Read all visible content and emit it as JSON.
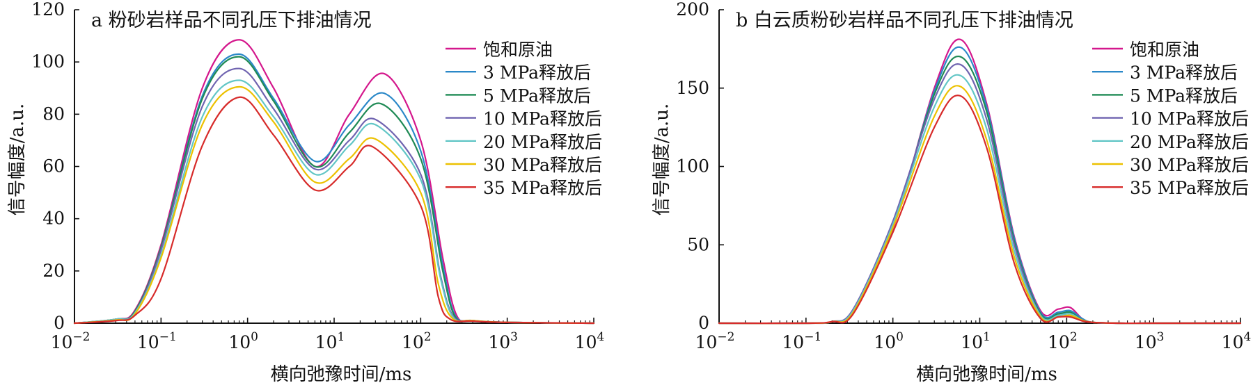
{
  "chart_data": [
    {
      "type": "line",
      "title": "a 粉砂岩样品不同孔压下排油情况",
      "xlabel": "横向弛豫时间/ms",
      "ylabel": "信号幅度/a.u.",
      "xscale": "log",
      "xlim": [
        0.01,
        10000
      ],
      "ylim": [
        0,
        120
      ],
      "xticks": [
        0.01,
        0.1,
        1,
        10,
        100,
        1000,
        10000
      ],
      "xtick_base": "10",
      "xtick_exponents": [
        "−2",
        "−1",
        "0",
        "1",
        "2",
        "3",
        "4"
      ],
      "yticks": [
        "0",
        "20",
        "40",
        "60",
        "80",
        "100",
        "120"
      ],
      "yticks_values": [
        0,
        20,
        40,
        60,
        80,
        100,
        120
      ],
      "legend_position": "right",
      "grid": false,
      "series": [
        {
          "name": "饱和原油",
          "color": "#d4178c",
          "x": [
            0.01,
            0.03,
            0.05,
            0.1,
            0.3,
            0.8,
            2,
            6,
            15,
            38,
            100,
            180,
            260,
            400,
            1000,
            10000
          ],
          "y": [
            0,
            1.5,
            5,
            30,
            90,
            108.5,
            90,
            60,
            80,
            95.5,
            70,
            25,
            3,
            1,
            0.3,
            0
          ]
        },
        {
          "name": "3 MPa释放后",
          "color": "#2a88c8",
          "x": [
            0.01,
            0.03,
            0.05,
            0.1,
            0.3,
            0.8,
            2,
            6,
            15,
            38,
            100,
            180,
            250,
            400,
            1000,
            10000
          ],
          "y": [
            0,
            1.5,
            4.5,
            29,
            87,
            103,
            86,
            62,
            76,
            88,
            66,
            22,
            3,
            1,
            0.3,
            0
          ]
        },
        {
          "name": "5 MPa释放后",
          "color": "#1f8a55",
          "x": [
            0.01,
            0.03,
            0.05,
            0.1,
            0.3,
            0.8,
            2,
            6,
            15,
            35,
            100,
            180,
            250,
            400,
            1000,
            10000
          ],
          "y": [
            0,
            1.5,
            4.5,
            29,
            86,
            102,
            85,
            60,
            73,
            84,
            63,
            20,
            2.5,
            1,
            0.3,
            0
          ]
        },
        {
          "name": "10 MPa释放后",
          "color": "#6f63b0",
          "x": [
            0.01,
            0.03,
            0.05,
            0.1,
            0.3,
            0.8,
            2,
            6,
            15,
            30,
            100,
            170,
            240,
            400,
            1000,
            10000
          ],
          "y": [
            0,
            1.5,
            4,
            28,
            83,
            97.5,
            82,
            59,
            70,
            78,
            57,
            18,
            2.5,
            1,
            0.3,
            0
          ]
        },
        {
          "name": "20 MPa释放后",
          "color": "#62c6c6",
          "x": [
            0.01,
            0.03,
            0.05,
            0.1,
            0.3,
            0.8,
            2,
            6,
            15,
            30,
            100,
            170,
            240,
            400,
            1000,
            10000
          ],
          "y": [
            0,
            1.5,
            4,
            26,
            79,
            93,
            79,
            57,
            68,
            76,
            55,
            17,
            2,
            1,
            0.3,
            0
          ]
        },
        {
          "name": "30 MPa释放后",
          "color": "#ecc100",
          "x": [
            0.01,
            0.03,
            0.05,
            0.1,
            0.3,
            0.8,
            2,
            6,
            15,
            30,
            100,
            160,
            230,
            400,
            1000,
            10000
          ],
          "y": [
            0,
            1.2,
            3.5,
            25,
            76,
            90.5,
            77,
            54,
            63,
            70.5,
            50,
            15,
            2,
            1,
            0.3,
            0
          ]
        },
        {
          "name": "35 MPa释放后",
          "color": "#d72b2a",
          "x": [
            0.01,
            0.03,
            0.05,
            0.1,
            0.3,
            0.8,
            2,
            6,
            15,
            28,
            100,
            160,
            220,
            400,
            1000,
            10000
          ],
          "y": [
            0,
            1,
            3,
            17,
            68,
            86.5,
            72,
            51,
            60,
            67.5,
            45,
            10,
            1.5,
            0.8,
            0.3,
            0
          ]
        }
      ]
    },
    {
      "type": "line",
      "title": "b 白云质粉砂岩样品不同孔压下排油情况",
      "xlabel": "横向弛豫时间/ms",
      "ylabel": "信号幅度/a.u.",
      "xscale": "log",
      "xlim": [
        0.01,
        10000
      ],
      "ylim": [
        0,
        200
      ],
      "xticks": [
        0.01,
        0.1,
        1,
        10,
        100,
        1000,
        10000
      ],
      "xtick_base": "10",
      "xtick_exponents": [
        "−2",
        "−1",
        "0",
        "1",
        "2",
        "3",
        "4"
      ],
      "yticks": [
        "0",
        "50",
        "100",
        "150",
        "200"
      ],
      "yticks_values": [
        0,
        50,
        100,
        150,
        200
      ],
      "legend_position": "right",
      "grid": false,
      "series": [
        {
          "name": "饱和原油",
          "color": "#d4178c",
          "x": [
            0.01,
            0.1,
            0.2,
            0.35,
            1,
            3,
            6,
            12,
            25,
            50,
            80,
            110,
            150,
            200,
            400,
            1000,
            10000
          ],
          "y": [
            0,
            0,
            1,
            8,
            60,
            150,
            181,
            140,
            55,
            8,
            9,
            10,
            3,
            0.5,
            0,
            0,
            0
          ]
        },
        {
          "name": "3 MPa释放后",
          "color": "#2a88c8",
          "x": [
            0.01,
            0.1,
            0.2,
            0.35,
            1,
            3,
            6,
            12,
            25,
            50,
            80,
            110,
            150,
            200,
            400,
            1000,
            10000
          ],
          "y": [
            0,
            0,
            1,
            8,
            61,
            148,
            176,
            138,
            54,
            7,
            7,
            8,
            3,
            0.5,
            0,
            0,
            0
          ]
        },
        {
          "name": "5 MPa释放后",
          "color": "#1f8a55",
          "x": [
            0.01,
            0.1,
            0.2,
            0.35,
            1,
            3,
            6,
            12,
            25,
            50,
            80,
            110,
            150,
            200,
            400,
            1000,
            10000
          ],
          "y": [
            0,
            0,
            1,
            8,
            62,
            146,
            170,
            135,
            52,
            6,
            6,
            7,
            2,
            0.5,
            0,
            0,
            0
          ]
        },
        {
          "name": "10 MPa释放后",
          "color": "#6f63b0",
          "x": [
            0.01,
            0.1,
            0.2,
            0.35,
            1,
            3,
            6,
            12,
            25,
            50,
            80,
            110,
            150,
            200,
            400,
            1000,
            10000
          ],
          "y": [
            0,
            0,
            1,
            9,
            65,
            143,
            165,
            130,
            50,
            5,
            5,
            6,
            2,
            0.5,
            0,
            0,
            0
          ]
        },
        {
          "name": "20 MPa释放后",
          "color": "#62c6c6",
          "x": [
            0.01,
            0.1,
            0.2,
            0.35,
            1,
            3,
            6,
            12,
            25,
            50,
            80,
            110,
            150,
            200,
            400,
            1000,
            10000
          ],
          "y": [
            0,
            0,
            1,
            8,
            63,
            138,
            158,
            124,
            46,
            5,
            5,
            6,
            2,
            0.5,
            0,
            0,
            0
          ]
        },
        {
          "name": "30 MPa释放后",
          "color": "#ecc100",
          "x": [
            0.01,
            0.1,
            0.2,
            0.35,
            1,
            3,
            6,
            12,
            25,
            50,
            80,
            110,
            150,
            200,
            400,
            1000,
            10000
          ],
          "y": [
            0,
            0,
            1,
            7,
            61,
            132,
            151,
            117,
            42,
            4,
            4,
            5,
            2,
            0.5,
            0,
            0,
            0
          ]
        },
        {
          "name": "35 MPa释放后",
          "color": "#d72b2a",
          "x": [
            0.01,
            0.1,
            0.2,
            0.35,
            1,
            3,
            6,
            12,
            25,
            50,
            80,
            110,
            150,
            200,
            400,
            1000,
            10000
          ],
          "y": [
            0,
            0,
            1,
            6,
            58,
            125,
            145,
            112,
            38,
            3,
            4,
            4,
            1.5,
            0.5,
            0,
            0,
            0
          ]
        }
      ]
    }
  ]
}
